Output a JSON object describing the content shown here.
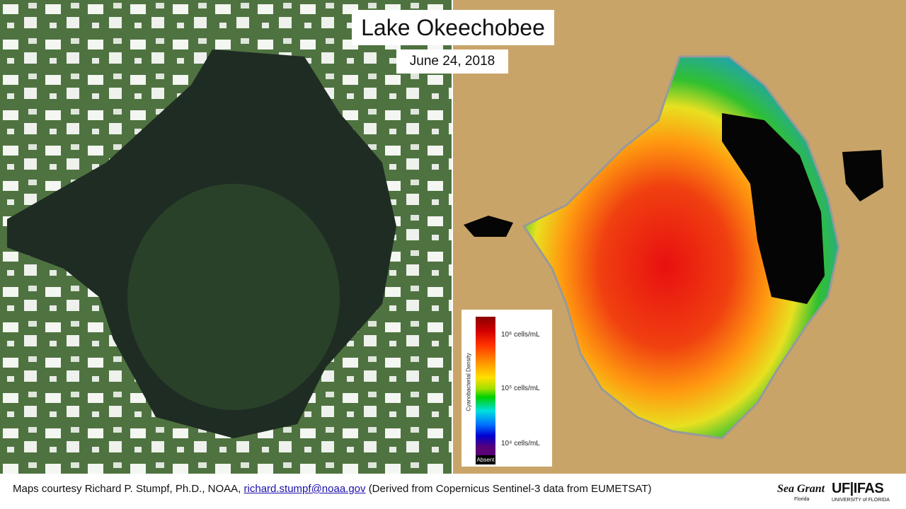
{
  "header": {
    "title": "Lake Okeechobee",
    "date": "June 24, 2018"
  },
  "legend": {
    "axis_label": "Cyanobacterial Density",
    "labels": [
      "10⁶ cells/mL",
      "10⁵ cells/mL",
      "10⁴ cells/mL"
    ],
    "absent": "Absent"
  },
  "footer": {
    "credit": "Maps courtesy Richard P. Stumpf, Ph.D., NOAA,",
    "email": "richard.stumpf@noaa.gov",
    "source": "(Derived from Copernicus Sentinel-3 data from EUMETSAT)"
  },
  "logos": {
    "sea_grant": "Sea Grant",
    "sea_grant_sub": "Florida",
    "uf_ifas": "UF|IFAS",
    "uf_sub": "UNIVERSITY of FLORIDA"
  }
}
